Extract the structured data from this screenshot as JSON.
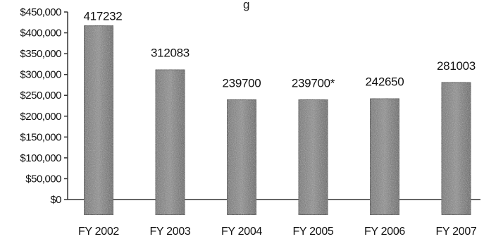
{
  "chart_data": {
    "type": "bar",
    "title": "",
    "title_fragment": "g",
    "xlabel": "",
    "ylabel": "",
    "categories": [
      "FY 2002",
      "FY 2003",
      "FY 2004",
      "FY 2005",
      "FY 2006",
      "FY 2007"
    ],
    "values": [
      417232,
      312083,
      239700,
      239700,
      242650,
      281003
    ],
    "data_labels": [
      "417232",
      "312083",
      "239700",
      "239700*",
      "242650",
      "281003"
    ],
    "ylim": [
      0,
      450000
    ],
    "yticks": [
      0,
      50000,
      100000,
      150000,
      200000,
      250000,
      300000,
      350000,
      400000,
      450000
    ],
    "ytick_labels": [
      "$0",
      "$50,000",
      "$100,000",
      "$150,000",
      "$200,000",
      "$250,000",
      "$300,000",
      "$350,000",
      "$400,000",
      "$450,000"
    ],
    "grid": false,
    "legend": "none",
    "colors": {
      "bar_dark": "#3a3a3a",
      "bar_mid": "#7a7a7a",
      "bar_light": "#b8b8b8"
    }
  }
}
